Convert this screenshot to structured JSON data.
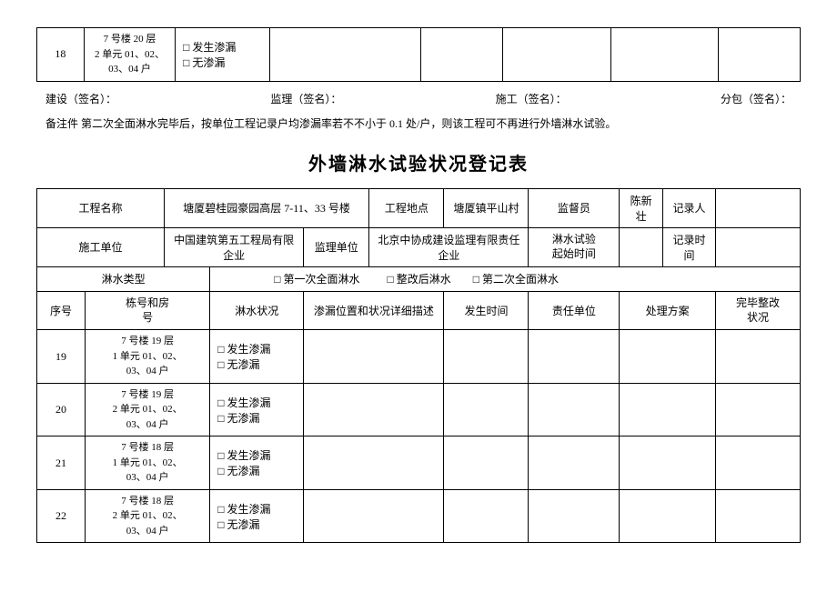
{
  "top_row": {
    "seq": "18",
    "loc": "7 号楼 20 层\n2 单元 01、02、\n03、04 户",
    "opt1": "发生渗漏",
    "opt2": "无渗漏"
  },
  "sigs": {
    "a": "建设（签名）：",
    "b": "监理（签名）：",
    "c": "施工（签名）：",
    "d": "分包（签名）："
  },
  "note_label": "备注件",
  "note_text": "第二次全面淋水完毕后，按单位工程记录户均渗漏率若不不小于 0.1 处/户，则该工程可不再进行外墙淋水试验。",
  "title": "外墙淋水试验状况登记表",
  "header": {
    "proj_name_label": "工程名称",
    "proj_name": "塘厦碧桂园豪园高层 7-11、33 号楼",
    "proj_loc_label": "工程地点",
    "proj_loc": "塘厦镇平山村",
    "supervisor_label": "监督员",
    "supervisor": "陈新壮",
    "recorder_label": "记录人",
    "contractor_label": "施工单位",
    "contractor": "中国建筑第五工程局有限企业",
    "super_unit_label": "监理单位",
    "super_unit": "北京中协成建设监理有限责任企业",
    "test_time_label": "淋水试验\n起始时间",
    "record_time_label": "记录时间"
  },
  "type_row": {
    "label": "淋水类型",
    "opt1": "第一次全面淋水",
    "opt2": "整改后淋水",
    "opt3": "第二次全面淋水"
  },
  "cols": {
    "c1": "序号",
    "c2": "栋号和房\n号",
    "c3": "淋水状况",
    "c4": "渗漏位置和状况详细描述",
    "c5": "发生时间",
    "c6": "责任单位",
    "c7": "处理方案",
    "c8": "完毕整改\n状况"
  },
  "rows": [
    {
      "seq": "19",
      "loc": "7 号楼 19 层\n1 单元 01、02、\n03、04 户",
      "o1": "发生渗漏",
      "o2": "无渗漏"
    },
    {
      "seq": "20",
      "loc": "7 号楼 19 层\n2 单元 01、02、\n03、04 户",
      "o1": "发生渗漏",
      "o2": "无渗漏"
    },
    {
      "seq": "21",
      "loc": "7 号楼 18 层\n1 单元 01、02、\n03、04 户",
      "o1": "发生渗漏",
      "o2": "无渗漏"
    },
    {
      "seq": "22",
      "loc": "7 号楼 18 层\n2 单元 01、02、\n03、04 户",
      "o1": "发生渗漏",
      "o2": "无渗漏"
    }
  ],
  "box": "□"
}
